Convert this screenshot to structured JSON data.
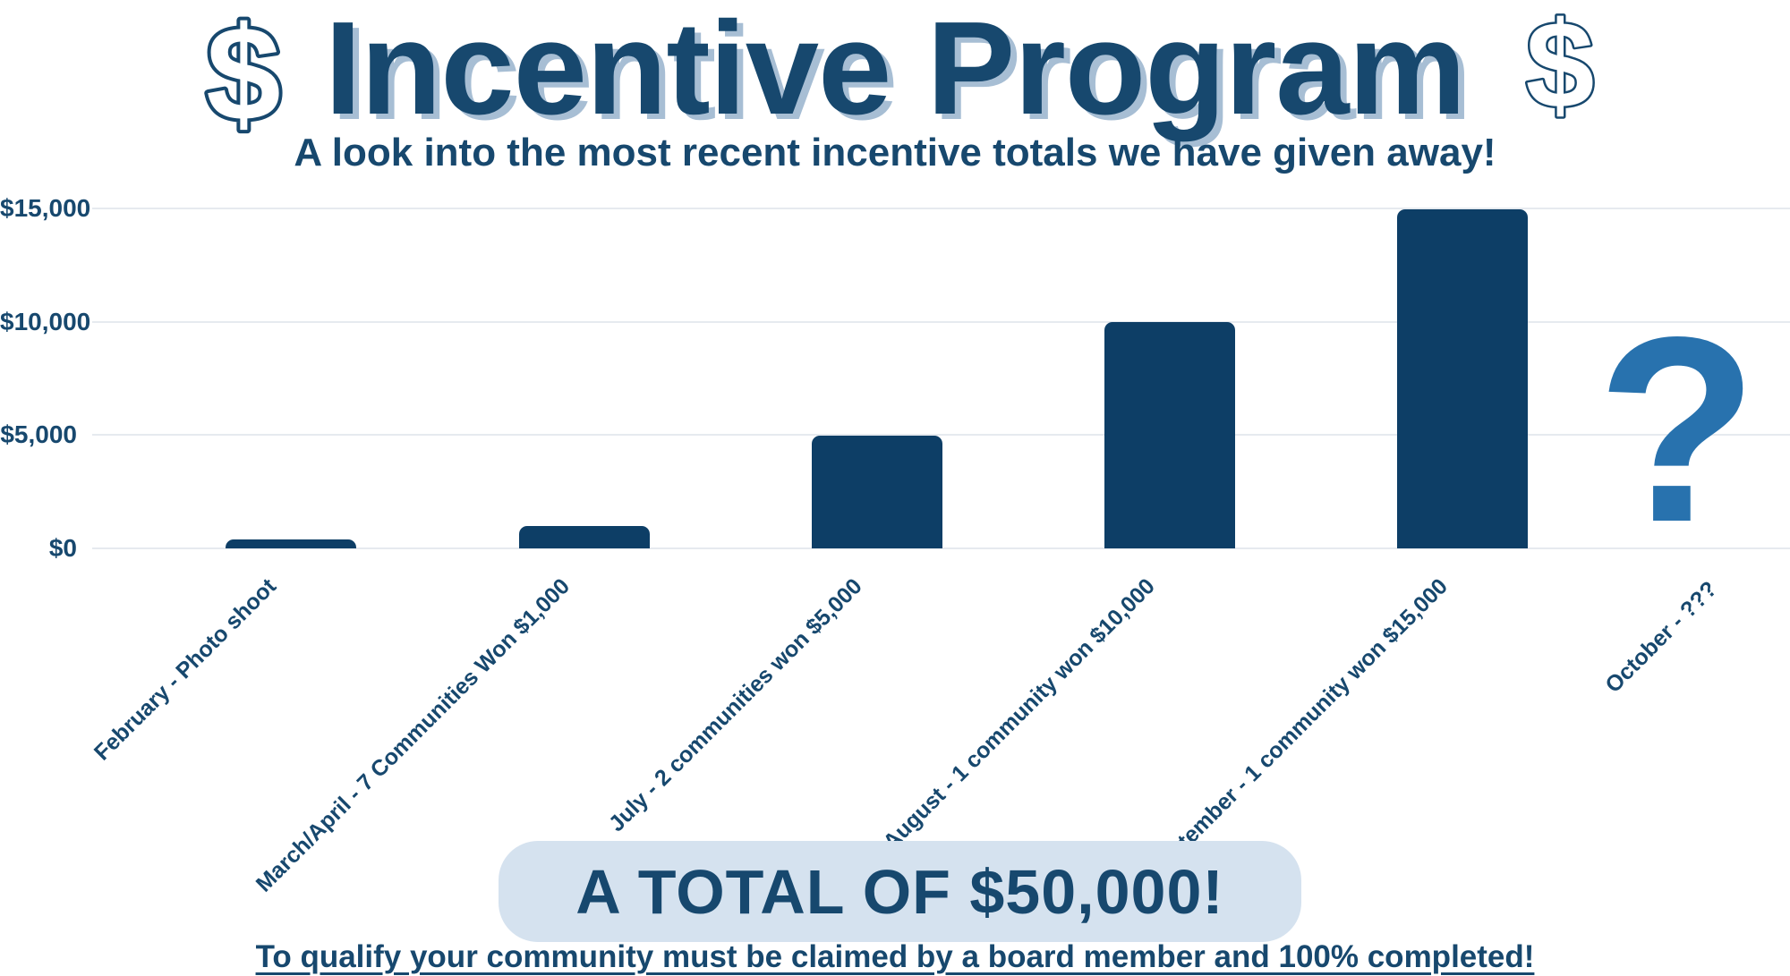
{
  "page": {
    "background_color": "#ffffff"
  },
  "colors": {
    "navy_text": "#17486e",
    "bar_fill": "#0d3e66",
    "title_shadow": "#a7bed4",
    "question_mark_blue": "#2872ae",
    "badge_background": "#d5e2ef",
    "gridline": "#e6eaef"
  },
  "header": {
    "dollar_symbol": "$",
    "title": "Incentive Program",
    "subtitle": "A look into the most recent incentive totals we have given away!"
  },
  "chart_data": {
    "type": "bar",
    "title": "Incentive Program",
    "subtitle": "A look into the most recent incentive totals we have given away!",
    "categories": [
      "February - Photo shoot",
      "March/April - 7 Communities Won $1,000",
      "July - 2 communities won $5,000",
      "August - 1 community won $10,000",
      "September - 1 community won $15,000",
      "October - ???"
    ],
    "values": [
      400,
      1000,
      5000,
      10000,
      15000,
      null
    ],
    "unknown_last_value_marker": "?",
    "yticks_top_to_bottom": [
      "$15,000",
      "$10,000",
      "$5,000",
      "$0"
    ],
    "ylim": [
      0,
      15000
    ],
    "grid": true,
    "legend_position": "none",
    "bar_color": "#0d3e66",
    "bar_corner_style": "rounded-top"
  },
  "footer": {
    "total_badge_label": "A TOTAL OF $50,000!",
    "qualification_note": "To qualify your community must be claimed by a board member and 100% completed!"
  }
}
